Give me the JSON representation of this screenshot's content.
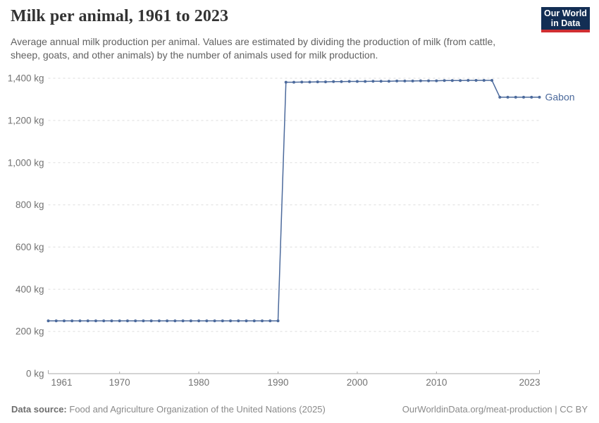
{
  "header": {
    "title": "Milk per animal, 1961 to 2023",
    "subtitle": "Average annual milk production per animal. Values are estimated by dividing the production of milk (from cattle, sheep, goats, and other animals) by the number of animals used for milk production.",
    "logo": {
      "line1": "Our World",
      "line2": "in Data",
      "bg_color": "#132e54",
      "accent_color": "#d02e32"
    }
  },
  "chart_data": {
    "type": "line",
    "title": "Milk per animal, 1961 to 2023",
    "unit": "kg",
    "xlabel": "",
    "ylabel": "",
    "x_range": [
      1961,
      2023
    ],
    "ylim": [
      0,
      1400
    ],
    "yticks": [
      0,
      200,
      400,
      600,
      800,
      1000,
      1200,
      1400
    ],
    "ytick_labels": [
      "0 kg",
      "200 kg",
      "400 kg",
      "600 kg",
      "800 kg",
      "1,000 kg",
      "1,200 kg",
      "1,400 kg"
    ],
    "xticks": [
      1961,
      1970,
      1980,
      1990,
      2000,
      2010,
      2023
    ],
    "xtick_labels": [
      "1961",
      "1970",
      "1980",
      "1990",
      "2000",
      "2010",
      "2023"
    ],
    "grid": "horizontal-dashed",
    "legend": "end-of-line-label",
    "colors": {
      "series": "#4c6a9c",
      "gridline": "#dddddd",
      "axis": "#a8a8a8",
      "tick_text": "#737373"
    },
    "series": [
      {
        "name": "Gabon",
        "color": "#4c6a9c",
        "x": [
          1961,
          1962,
          1963,
          1964,
          1965,
          1966,
          1967,
          1968,
          1969,
          1970,
          1971,
          1972,
          1973,
          1974,
          1975,
          1976,
          1977,
          1978,
          1979,
          1980,
          1981,
          1982,
          1983,
          1984,
          1985,
          1986,
          1987,
          1988,
          1989,
          1990,
          1991,
          1992,
          1993,
          1994,
          1995,
          1996,
          1997,
          1998,
          1999,
          2000,
          2001,
          2002,
          2003,
          2004,
          2005,
          2006,
          2007,
          2008,
          2009,
          2010,
          2011,
          2012,
          2013,
          2014,
          2015,
          2016,
          2017,
          2018,
          2019,
          2020,
          2021,
          2022,
          2023
        ],
        "values": [
          250,
          250,
          250,
          250,
          250,
          250,
          250,
          250,
          250,
          250,
          250,
          250,
          250,
          250,
          250,
          250,
          250,
          250,
          250,
          250,
          250,
          250,
          250,
          250,
          250,
          250,
          250,
          250,
          250,
          250,
          1381,
          1381,
          1382,
          1382,
          1383,
          1383,
          1384,
          1384,
          1385,
          1385,
          1385,
          1386,
          1386,
          1386,
          1387,
          1387,
          1387,
          1388,
          1388,
          1388,
          1389,
          1389,
          1389,
          1390,
          1390,
          1390,
          1390,
          1310,
          1310,
          1310,
          1310,
          1310,
          1310
        ]
      }
    ]
  },
  "footer": {
    "source_label": "Data source:",
    "source_text": "Food and Agriculture Organization of the United Nations (2025)",
    "link_text": "OurWorldinData.org/meat-production | CC BY"
  }
}
